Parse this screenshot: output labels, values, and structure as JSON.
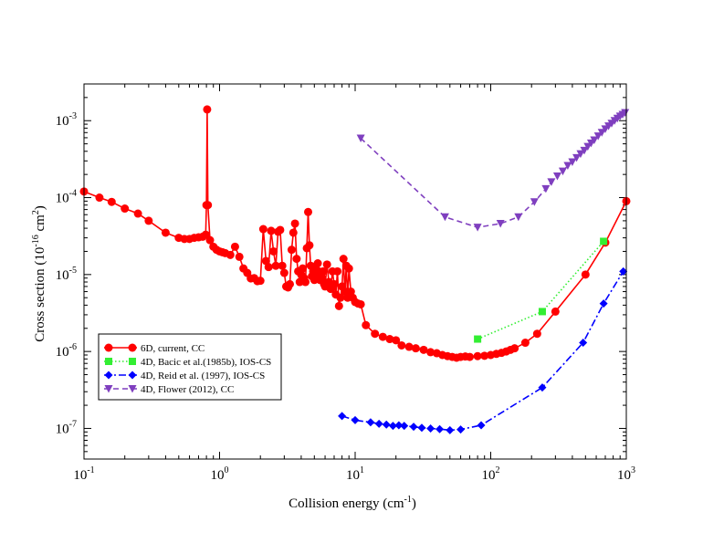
{
  "chart_data": {
    "type": "line",
    "xscale": "log",
    "yscale": "log",
    "xlim": [
      0.1,
      1000
    ],
    "ylim": [
      4e-08,
      0.003
    ],
    "xlabel": {
      "text": "Collision energy (cm",
      "sup": "-1",
      "tail": ")"
    },
    "ylabel": {
      "text": "Cross section (10",
      "sup1": "-16",
      "mid": " cm",
      "sup2": "2",
      "tail": ")"
    },
    "x_ticks": [
      {
        "value": 0.1,
        "base": "10",
        "exp": "-1"
      },
      {
        "value": 1,
        "base": "10",
        "exp": "0"
      },
      {
        "value": 10,
        "base": "10",
        "exp": "1"
      },
      {
        "value": 100,
        "base": "10",
        "exp": "2"
      },
      {
        "value": 1000,
        "base": "10",
        "exp": "3"
      }
    ],
    "y_ticks": [
      {
        "value": 1e-07,
        "base": "10",
        "exp": "-7"
      },
      {
        "value": 1e-06,
        "base": "10",
        "exp": "-6"
      },
      {
        "value": 1e-05,
        "base": "10",
        "exp": "-5"
      },
      {
        "value": 0.0001,
        "base": "10",
        "exp": "-4"
      },
      {
        "value": 0.001,
        "base": "10",
        "exp": "-3"
      }
    ],
    "legend_position": "lower-left",
    "series": [
      {
        "name": "6D, current, CC",
        "color": "#ff0000",
        "marker": "circle",
        "dash": "solid",
        "x": [
          0.1,
          0.13,
          0.16,
          0.2,
          0.25,
          0.3,
          0.4,
          0.5,
          0.55,
          0.6,
          0.65,
          0.7,
          0.75,
          0.79,
          0.8,
          0.81,
          0.82,
          0.85,
          0.9,
          0.95,
          1.0,
          1.05,
          1.1,
          1.2,
          1.3,
          1.4,
          1.5,
          1.6,
          1.7,
          1.8,
          1.9,
          2.0,
          2.1,
          2.2,
          2.3,
          2.4,
          2.5,
          2.6,
          2.7,
          2.8,
          2.9,
          3.0,
          3.1,
          3.2,
          3.3,
          3.4,
          3.5,
          3.6,
          3.7,
          3.8,
          3.9,
          4.0,
          4.1,
          4.2,
          4.3,
          4.4,
          4.5,
          4.6,
          4.7,
          4.8,
          4.9,
          5.0,
          5.1,
          5.2,
          5.3,
          5.4,
          5.5,
          5.6,
          5.7,
          5.8,
          5.9,
          6.0,
          6.2,
          6.4,
          6.6,
          6.8,
          7.0,
          7.2,
          7.4,
          7.6,
          7.8,
          8.0,
          8.2,
          8.4,
          8.6,
          8.8,
          9.0,
          9.3,
          9.6,
          10.0,
          10.5,
          11.0,
          12,
          14,
          16,
          18,
          20,
          22,
          25,
          28,
          32,
          36,
          40,
          44,
          48,
          52,
          56,
          60,
          65,
          70,
          80,
          90,
          100,
          110,
          120,
          130,
          140,
          150,
          180,
          220,
          300,
          500,
          700,
          1000
        ],
        "y": [
          0.00012,
          0.0001,
          8.8e-05,
          7.2e-05,
          6.2e-05,
          5e-05,
          3.5e-05,
          3e-05,
          2.9e-05,
          2.9e-05,
          3e-05,
          3.05e-05,
          3.1e-05,
          3.3e-05,
          8e-05,
          0.0014,
          8e-05,
          2.8e-05,
          2.3e-05,
          2.1e-05,
          2e-05,
          1.95e-05,
          1.9e-05,
          1.8e-05,
          2.3e-05,
          1.7e-05,
          1.2e-05,
          1.05e-05,
          8.9e-06,
          9e-06,
          8.2e-06,
          8.3e-06,
          3.9e-05,
          1.5e-05,
          1.25e-05,
          3.7e-05,
          2e-05,
          1.3e-05,
          3.6e-05,
          3.8e-05,
          1.3e-05,
          1.05e-05,
          7e-06,
          6.8e-06,
          7.5e-06,
          2.1e-05,
          3.5e-05,
          4.6e-05,
          1.6e-05,
          1.1e-05,
          8e-06,
          1e-05,
          1.2e-05,
          9e-06,
          8e-06,
          2.2e-05,
          6.5e-05,
          2.4e-05,
          1.3e-05,
          9.5e-06,
          1.1e-05,
          8.5e-06,
          1.2e-05,
          9e-06,
          1.4e-05,
          1.1e-05,
          8.5e-06,
          1e-05,
          9e-06,
          1.1e-05,
          7.5e-06,
          7e-06,
          1.35e-05,
          8e-06,
          6.5e-06,
          1.1e-05,
          7.5e-06,
          5.5e-06,
          1.1e-05,
          3.9e-06,
          5e-06,
          7e-06,
          1.6e-05,
          6e-06,
          1.3e-05,
          5e-06,
          1.2e-05,
          6e-06,
          5e-06,
          4.4e-06,
          4.2e-06,
          4.1e-06,
          2.2e-06,
          1.7e-06,
          1.55e-06,
          1.45e-06,
          1.4e-06,
          1.2e-06,
          1.15e-06,
          1.1e-06,
          1.05e-06,
          9.8e-07,
          9.5e-07,
          9e-07,
          8.7e-07,
          8.5e-07,
          8.3e-07,
          8.5e-07,
          8.6e-07,
          8.5e-07,
          8.7e-07,
          8.8e-07,
          9e-07,
          9.3e-07,
          9.6e-07,
          1e-06,
          1.05e-06,
          1.1e-06,
          1.3e-06,
          1.7e-06,
          3.3e-06,
          1e-05,
          2.6e-05,
          9e-05
        ]
      },
      {
        "name": "4D, Bacic et al.(1985b), IOS-CS",
        "color": "#33ee33",
        "marker": "square",
        "dash": "dotted",
        "x": [
          80,
          240,
          680
        ],
        "y": [
          1.45e-06,
          3.3e-06,
          2.7e-05
        ]
      },
      {
        "name": "4D, Reid et al. (1997), IOS-CS",
        "color": "#0000ff",
        "marker": "diamond",
        "dash": "dashdot",
        "x": [
          8,
          10,
          13,
          15,
          17,
          19,
          21,
          23,
          27,
          31,
          36,
          42,
          50,
          60,
          85,
          240,
          480,
          680,
          950
        ],
        "y": [
          1.45e-07,
          1.28e-07,
          1.2e-07,
          1.15e-07,
          1.12e-07,
          1.08e-07,
          1.1e-07,
          1.08e-07,
          1.05e-07,
          1.02e-07,
          1e-07,
          9.8e-08,
          9.5e-08,
          9.7e-08,
          1.1e-07,
          3.4e-07,
          1.3e-06,
          4.2e-06,
          1.1e-05
        ]
      },
      {
        "name": "4D, Flower (2012), CC",
        "color": "#7f3fbf",
        "marker": "triangle-down",
        "dash": "dashed",
        "x": [
          11,
          46,
          80,
          118,
          160,
          210,
          255,
          280,
          310,
          340,
          370,
          400,
          430,
          460,
          490,
          520,
          550,
          580,
          620,
          660,
          700,
          740,
          780,
          820,
          860,
          900,
          940,
          980
        ],
        "y": [
          0.00059,
          5.6e-05,
          4.1e-05,
          4.6e-05,
          5.6e-05,
          8.8e-05,
          0.00013,
          0.00016,
          0.00019,
          0.00022,
          0.00026,
          0.00029,
          0.00033,
          0.00037,
          0.00041,
          0.00046,
          0.00051,
          0.00056,
          0.00063,
          0.0007,
          0.00078,
          0.00085,
          0.00092,
          0.001,
          0.00107,
          0.00114,
          0.0012,
          0.00127
        ]
      }
    ]
  }
}
